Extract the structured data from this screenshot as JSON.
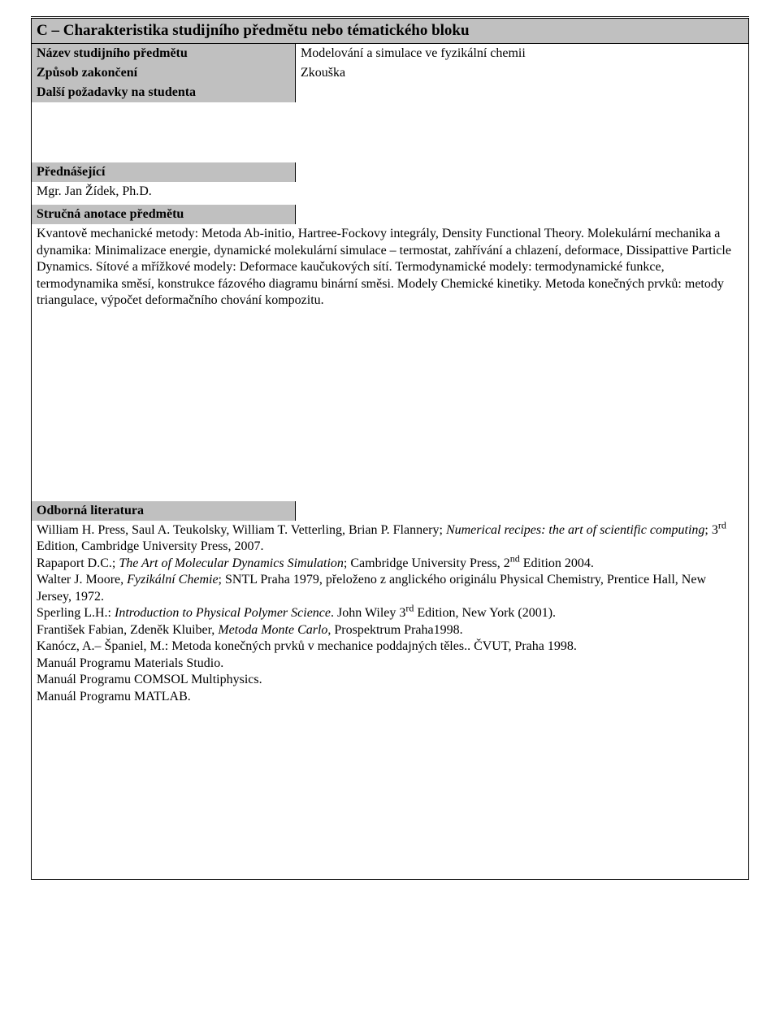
{
  "colors": {
    "header_bg": "#c0c0c0",
    "border": "#000000",
    "page_bg": "#ffffff",
    "text": "#000000"
  },
  "typography": {
    "base_family": "Times New Roman",
    "base_size_pt": 12,
    "title_size_pt": 14,
    "title_weight": "bold",
    "label_weight": "bold"
  },
  "title": "C – Charakteristika studijního předmětu nebo tématického bloku",
  "rows": {
    "nazev": {
      "label": "Název studijního předmětu",
      "value": "Modelování a simulace ve fyzikální chemii"
    },
    "zpusob": {
      "label": "Způsob zakončení",
      "value": "Zkouška"
    },
    "dalsi": {
      "label": "Další požadavky na studenta",
      "value": ""
    }
  },
  "prednasejici": {
    "label": "Přednášející",
    "body": "Mgr. Jan Žídek, Ph.D."
  },
  "anotace": {
    "label": "Stručná anotace předmětu",
    "body": "Kvantově mechanické metody: Metoda Ab-initio, Hartree-Fockovy integrály, Density Functional Theory. Molekulární mechanika a dynamika: Minimalizace energie, dynamické molekulární simulace – termostat, zahřívání a chlazení, deformace, Dissipattive Particle Dynamics. Sítové a mřížkové modely: Deformace kaučukových sítí. Termodynamické modely: termodynamické funkce, termodynamika směsí, konstrukce fázového diagramu binární směsi. Modely Chemické kinetiky. Metoda konečných prvků: metody triangulace, výpočet deformačního chování kompozitu."
  },
  "literatura": {
    "label": "Odborná literatura",
    "lines": {
      "l1a": "William H. Press, Saul A. Teukolsky, William T. Vetterling, Brian P. Flannery; ",
      "l1b": "Numerical recipes: the art of scientific computing",
      "l1c": "; 3",
      "l1sup": "rd",
      "l1d": " Edition, Cambridge University Press, 2007.",
      "l2a": "Rapaport D.C.; ",
      "l2b": "The Art of Molecular Dynamics Simulation",
      "l2c": "; Cambridge University Press, 2",
      "l2sup": "nd",
      "l2d": " Edition 2004.",
      "l3a": "Walter J. Moore, ",
      "l3b": "Fyzikální Chemie",
      "l3c": "; SNTL Praha 1979, přeloženo z anglického originálu Physical Chemistry, Prentice Hall, New Jersey, 1972.",
      "l4a": "Sperling L.H.: ",
      "l4b": "Introduction to Physical Polymer Science",
      "l4c": ". John Wiley 3",
      "l4sup": "rd",
      "l4d": " Edition, New York (2001).",
      "l5a": "František Fabian, Zdeněk Kluiber, ",
      "l5b": "Metoda Monte Carlo",
      "l5c": ", Prospektrum Praha1998.",
      "l6": "Kanócz, A.– Španiel, M.: Metoda konečných prvků v mechanice poddajných těles.. ČVUT, Praha 1998.",
      "l7": "Manuál Programu Materials Studio.",
      "l8": "Manuál Programu COMSOL Multiphysics.",
      "l9": "Manuál Programu MATLAB."
    }
  }
}
